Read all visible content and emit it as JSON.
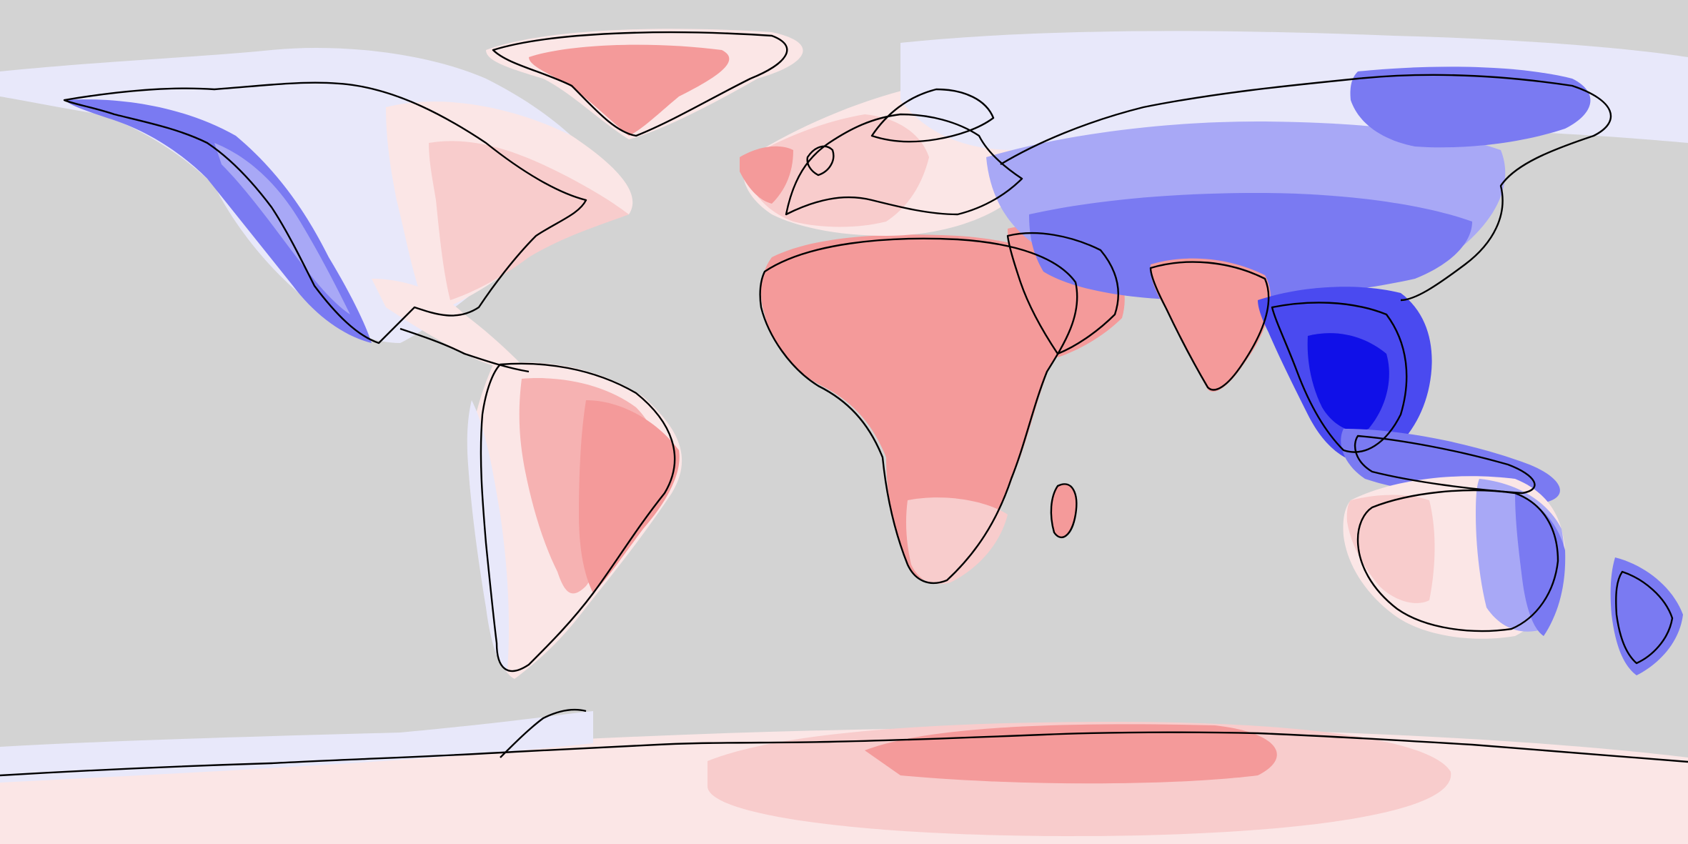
{
  "map": {
    "projection": "equirectangular",
    "background_color": "#d3d3d3",
    "outline_color": "#000000",
    "colors": {
      "blue_darkest": "#1010e8",
      "blue_dark": "#4a4af0",
      "blue_mid": "#7a7af2",
      "blue_light": "#a8a8f6",
      "blue_pale": "#d2d2f8",
      "blue_faint": "#e8e8fa",
      "red_faint": "#fbe6e6",
      "red_pale": "#f8cccc",
      "red_light": "#f6b2b2",
      "red_mid": "#f49a9a",
      "red_dark": "#f28888"
    },
    "regions": [
      {
        "name": "antarctica",
        "tone": "red_faint"
      },
      {
        "name": "antarctica-west",
        "tone": "blue_faint"
      },
      {
        "name": "antarctica-east-core",
        "tone": "red_pale"
      },
      {
        "name": "antarctica-east-center",
        "tone": "red_mid"
      },
      {
        "name": "greenland",
        "tone": "red_faint"
      },
      {
        "name": "greenland-core",
        "tone": "red_mid"
      },
      {
        "name": "north-america",
        "tone": "blue_faint"
      },
      {
        "name": "north-america-east",
        "tone": "red_faint"
      },
      {
        "name": "north-america-southeast",
        "tone": "red_pale"
      },
      {
        "name": "north-america-west",
        "tone": "blue_mid"
      },
      {
        "name": "north-america-west-inner",
        "tone": "blue_light"
      },
      {
        "name": "central-america",
        "tone": "red_faint"
      },
      {
        "name": "south-america",
        "tone": "red_faint"
      },
      {
        "name": "south-america-center",
        "tone": "red_light"
      },
      {
        "name": "south-america-east",
        "tone": "red_mid"
      },
      {
        "name": "south-america-west-coast",
        "tone": "blue_faint"
      },
      {
        "name": "africa",
        "tone": "red_mid"
      },
      {
        "name": "africa-south",
        "tone": "red_pale"
      },
      {
        "name": "madagascar",
        "tone": "red_mid"
      },
      {
        "name": "europe",
        "tone": "red_faint"
      },
      {
        "name": "europe-west",
        "tone": "red_pale"
      },
      {
        "name": "iberia-atlantic",
        "tone": "red_mid"
      },
      {
        "name": "arabia",
        "tone": "red_mid"
      },
      {
        "name": "asia-north",
        "tone": "blue_faint"
      },
      {
        "name": "asia-central",
        "tone": "blue_light"
      },
      {
        "name": "asia-band",
        "tone": "blue_mid"
      },
      {
        "name": "siberia-east",
        "tone": "blue_mid"
      },
      {
        "name": "india",
        "tone": "red_mid"
      },
      {
        "name": "southeast-asia",
        "tone": "blue_dark"
      },
      {
        "name": "southeast-asia-core",
        "tone": "blue_darkest"
      },
      {
        "name": "indonesia",
        "tone": "blue_mid"
      },
      {
        "name": "australia",
        "tone": "red_faint"
      },
      {
        "name": "australia-west",
        "tone": "red_pale"
      },
      {
        "name": "australia-east",
        "tone": "blue_light"
      },
      {
        "name": "australia-east-coast",
        "tone": "blue_mid"
      },
      {
        "name": "new-zealand",
        "tone": "blue_mid"
      }
    ]
  }
}
